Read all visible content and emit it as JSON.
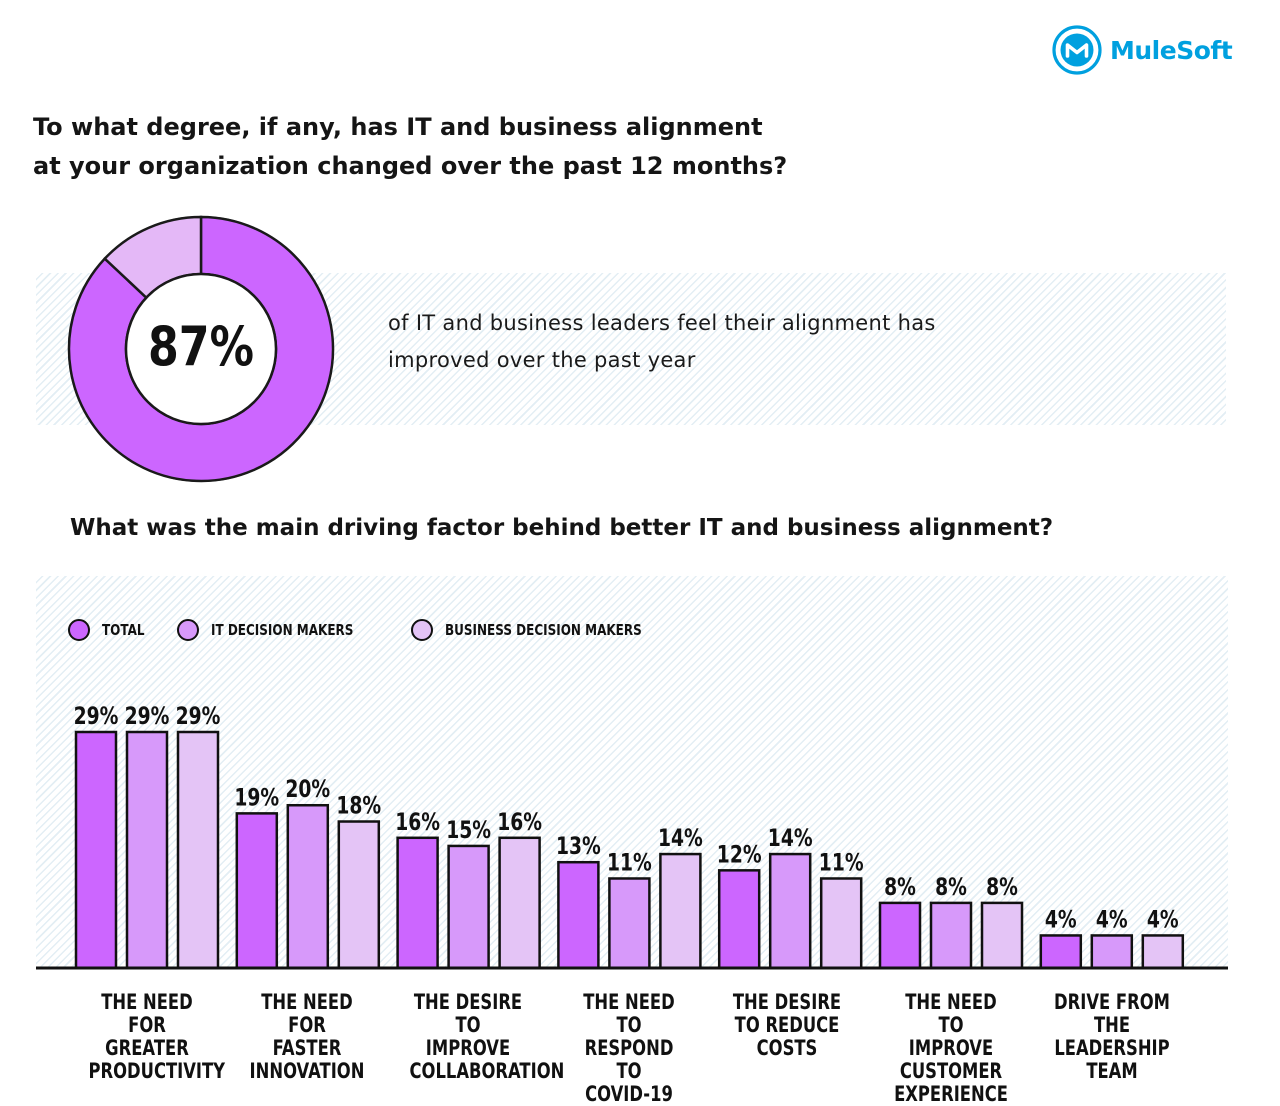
{
  "brand": {
    "name": "MuleSoft",
    "logo_icon": "mulesoft-m-icon",
    "color": "#00a0df"
  },
  "question_1": "To what degree, if any, has IT and business alignment at your organization changed over the past 12 months?",
  "stat": {
    "value": "87%",
    "fraction": 0.87,
    "text": "of IT and business leaders feel their alignment has improved over the past year",
    "colors": {
      "improved": "#cc66ff",
      "other": "#e4b8f7"
    }
  },
  "question_2": "What was the main driving factor behind better IT and business alignment?",
  "chart_data": {
    "type": "bar",
    "categories": [
      "THE NEED FOR GREATER PRODUCTIVITY",
      "THE NEED FOR FASTER INNOVATION",
      "THE DESIRE TO IMPROVE COLLABORATION",
      "THE NEED TO RESPOND TO COVID-19",
      "THE DESIRE TO REDUCE COSTS",
      "THE NEED TO IMPROVE CUSTOMER EXPERIENCE",
      "DRIVE FROM THE LEADERSHIP TEAM"
    ],
    "category_labels": [
      "THE NEED FOR\nGREATER\nPRODUCTIVITY",
      "THE NEED FOR\nFASTER\nINNOVATION",
      "THE DESIRE TO\nIMPROVE\nCOLLABORATION",
      "THE NEED TO\nRESPOND TO\nCOVID-19",
      "THE DESIRE\nTO REDUCE\nCOSTS",
      "THE NEED TO\nIMPROVE\nCUSTOMER\nEXPERIENCE",
      "DRIVE FROM\nTHE LEADERSHIP\nTEAM"
    ],
    "series": [
      {
        "name": "TOTAL",
        "color": "#cc66ff",
        "values": [
          29,
          19,
          16,
          13,
          12,
          8,
          4
        ]
      },
      {
        "name": "IT DECISION MAKERS",
        "color": "#d799fa",
        "values": [
          29,
          20,
          15,
          11,
          14,
          8,
          4
        ]
      },
      {
        "name": "BUSINESS DECISION MAKERS",
        "color": "#e4c4f6",
        "values": [
          29,
          18,
          16,
          14,
          11,
          8,
          4
        ]
      }
    ],
    "value_suffix": "%",
    "ylim": [
      0,
      29
    ],
    "grid": false,
    "legend_position": "top-left"
  }
}
